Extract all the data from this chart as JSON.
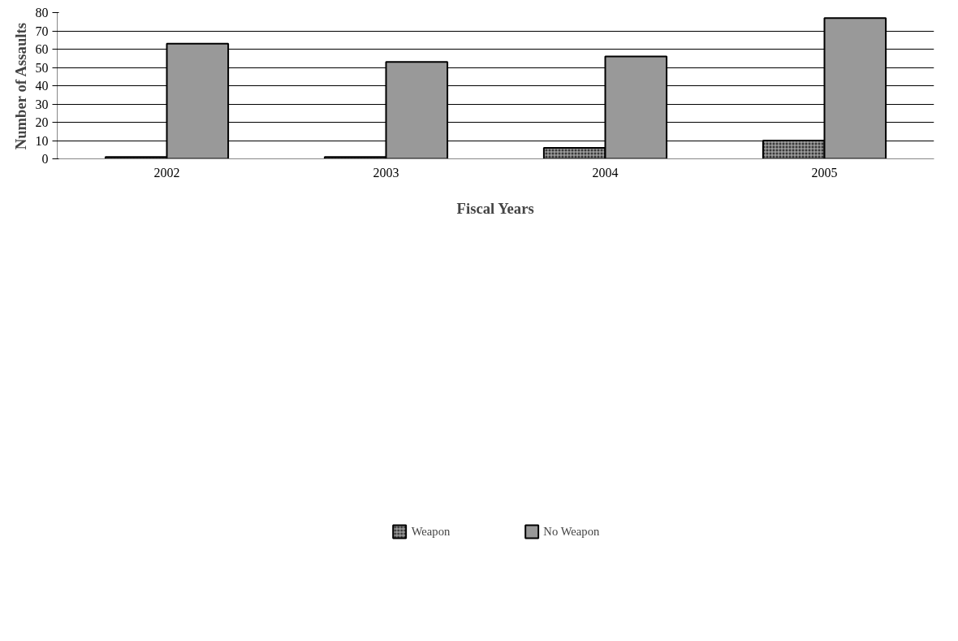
{
  "chart_data": {
    "type": "bar",
    "xlabel": "Fiscal Years",
    "ylabel": "Number of Assaults",
    "categories": [
      "2002",
      "2003",
      "2004",
      "2005"
    ],
    "series": [
      {
        "name": "Weapon",
        "color": "#3a3a3a",
        "values": [
          1,
          1,
          6,
          10
        ]
      },
      {
        "name": "No Weapon",
        "color": "#999999",
        "values": [
          63,
          53,
          56,
          77
        ]
      }
    ],
    "ylim": [
      0,
      80
    ],
    "yticks": [
      0,
      10,
      20,
      30,
      40,
      50,
      60,
      70,
      80
    ],
    "grid": "y",
    "legend": "bottom"
  }
}
